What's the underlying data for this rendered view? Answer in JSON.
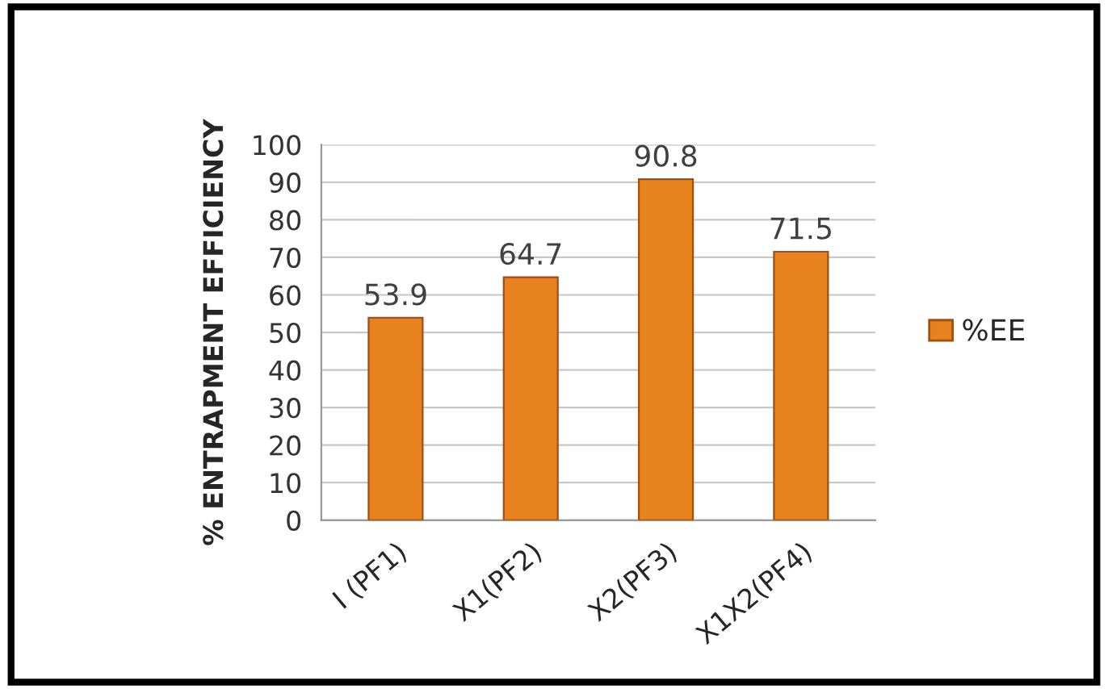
{
  "chart_data": {
    "type": "bar",
    "ylabel": "% ENTRAPMENT EFFICIENCY",
    "categories": [
      "I (PF1)",
      "X1(PF2)",
      "X2(PF3)",
      "X1X2(PF4)"
    ],
    "series": [
      {
        "name": "%EE",
        "color": "#e8821e",
        "values": [
          53.9,
          64.7,
          90.8,
          71.5
        ]
      }
    ],
    "data_labels": true,
    "ylim": [
      0,
      100
    ],
    "yticks": [
      0,
      10,
      20,
      30,
      40,
      50,
      60,
      70,
      80,
      90,
      100
    ],
    "grid": "y",
    "legend": "right"
  }
}
